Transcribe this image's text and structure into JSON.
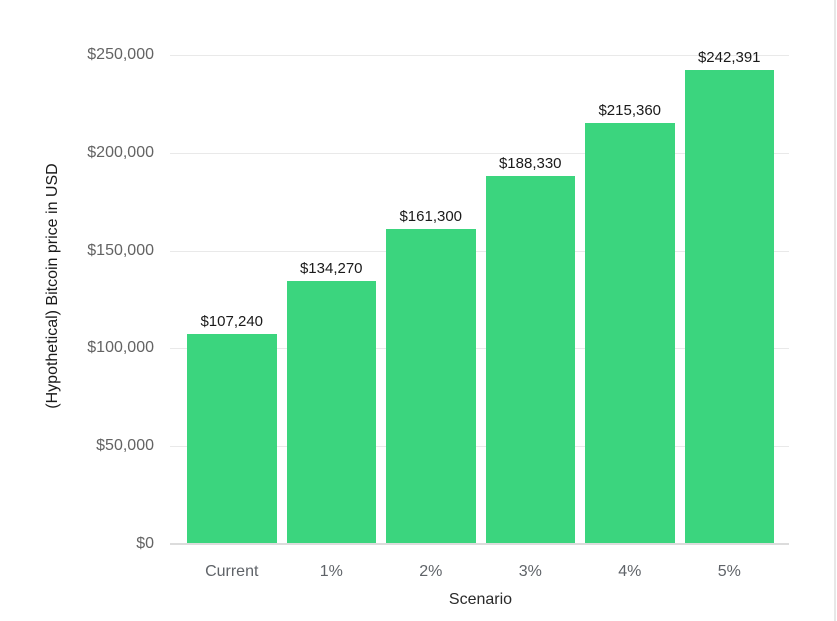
{
  "chart_data": {
    "type": "bar",
    "title": "",
    "categories": [
      "Current",
      "1%",
      "2%",
      "3%",
      "4%",
      "5%"
    ],
    "values": [
      107240,
      134270,
      161300,
      188330,
      215360,
      242391
    ],
    "value_labels": [
      "$107,240",
      "$134,270",
      "$161,300",
      "$188,330",
      "$215,360",
      "$242,391"
    ],
    "xlabel": "Scenario",
    "ylabel": "(Hypothetical) Bitcoin price in USD",
    "ylim": [
      0,
      250000
    ],
    "yticks": [
      0,
      50000,
      100000,
      150000,
      200000,
      250000
    ],
    "ytick_labels": [
      "$0",
      "$50,000",
      "$100,000",
      "$150,000",
      "$200,000",
      "$250,000"
    ],
    "bar_color": "#3bd57e",
    "grid": true,
    "legend": false
  },
  "colors": {
    "bar": "#3bd57e",
    "gridline": "#e9e9e9",
    "baseline": "#dcdcdc",
    "tick_text": "#636363",
    "value_text": "#1a1a1a",
    "background": "#ffffff"
  }
}
